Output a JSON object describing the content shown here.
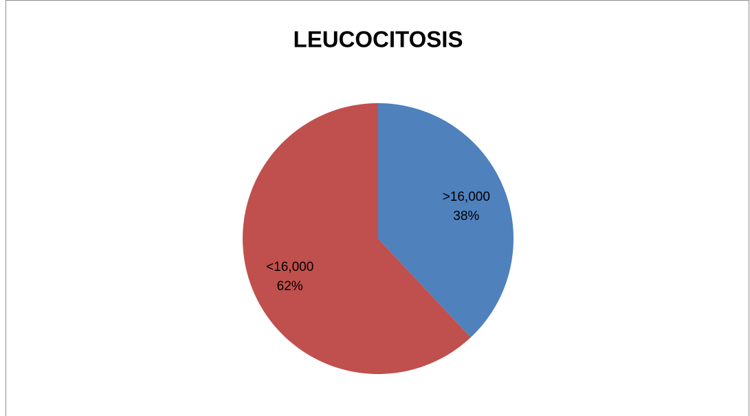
{
  "chart_data": {
    "type": "pie",
    "title": "LEUCOCITOSIS",
    "categories": [
      ">16,000",
      "<16,000"
    ],
    "values": [
      38,
      62
    ],
    "value_labels": [
      "38%",
      "62%"
    ],
    "colors": [
      "#4f81bd",
      "#c0504d"
    ]
  }
}
